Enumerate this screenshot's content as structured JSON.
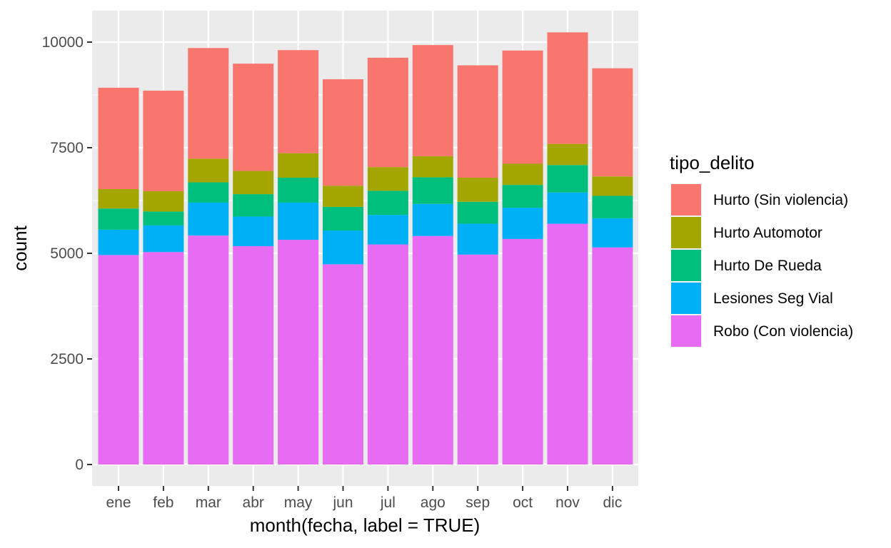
{
  "chart_data": {
    "type": "bar",
    "stacked": true,
    "title": "",
    "xlabel": "month(fecha, label = TRUE)",
    "ylabel": "count",
    "ylim": [
      0,
      10500
    ],
    "yticks": [
      0,
      2500,
      5000,
      7500,
      10000
    ],
    "grid": true,
    "legend_position": "right",
    "legend_title": "tipo_delito",
    "categories": [
      "ene",
      "feb",
      "mar",
      "abr",
      "may",
      "jun",
      "jul",
      "ago",
      "sep",
      "oct",
      "nov",
      "dic"
    ],
    "series": [
      {
        "name": "Robo (Con violencia)",
        "color": "#E76BF3",
        "values": [
          4960,
          5030,
          5420,
          5170,
          5320,
          4740,
          5210,
          5410,
          4970,
          5340,
          5700,
          5140
        ]
      },
      {
        "name": "Lesiones Seg Vial",
        "color": "#00B0F6",
        "values": [
          600,
          630,
          780,
          700,
          880,
          800,
          700,
          760,
          730,
          740,
          740,
          690
        ]
      },
      {
        "name": "Hurto De Rueda",
        "color": "#00BF7D",
        "values": [
          500,
          330,
          480,
          530,
          590,
          560,
          570,
          630,
          520,
          540,
          650,
          530
        ]
      },
      {
        "name": "Hurto Automotor",
        "color": "#A3A500",
        "values": [
          460,
          480,
          560,
          550,
          580,
          500,
          560,
          500,
          570,
          500,
          500,
          460
        ]
      },
      {
        "name": "Hurto (Sin violencia)",
        "color": "#F8766D",
        "values": [
          2400,
          2380,
          2620,
          2540,
          2440,
          2520,
          2590,
          2630,
          2660,
          2680,
          2640,
          2560
        ]
      }
    ],
    "legend_order": [
      "Hurto (Sin violencia)",
      "Hurto Automotor",
      "Hurto De Rueda",
      "Lesiones Seg Vial",
      "Robo (Con violencia)"
    ]
  }
}
